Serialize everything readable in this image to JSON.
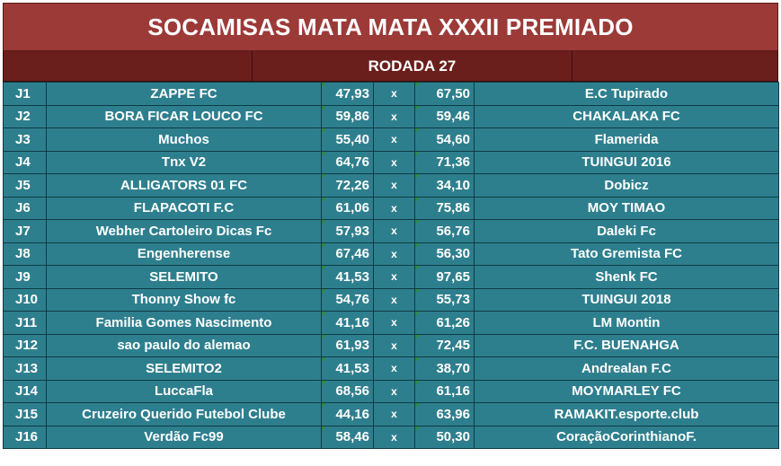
{
  "title": "SOCAMISAS MATA MATA XXXII PREMIADO",
  "round": "RODADA 27",
  "versus": "x",
  "matches": [
    {
      "id": "J1",
      "home": "ZAPPE FC",
      "home_score": "47,93",
      "away_score": "67,50",
      "away": "E.C Tupirado"
    },
    {
      "id": "J2",
      "home": "BORA FICAR LOUCO FC",
      "home_score": "59,86",
      "away_score": "59,46",
      "away": "CHAKALAKA FC"
    },
    {
      "id": "J3",
      "home": "Muchos",
      "home_score": "55,40",
      "away_score": "54,60",
      "away": "Flamerida"
    },
    {
      "id": "J4",
      "home": "Tnx V2",
      "home_score": "64,76",
      "away_score": "71,36",
      "away": "TUINGUI 2016"
    },
    {
      "id": "J5",
      "home": "ALLIGATORS 01 FC",
      "home_score": "72,26",
      "away_score": "34,10",
      "away": "Dobicz"
    },
    {
      "id": "J6",
      "home": "FLAPACOTI F.C",
      "home_score": "61,06",
      "away_score": "75,86",
      "away": "MOY TIMAO"
    },
    {
      "id": "J7",
      "home": "Webher Cartoleiro Dicas Fc",
      "home_score": "57,93",
      "away_score": "56,76",
      "away": "Daleki Fc"
    },
    {
      "id": "J8",
      "home": "Engenherense",
      "home_score": "67,46",
      "away_score": "56,30",
      "away": "Tato Gremista FC"
    },
    {
      "id": "J9",
      "home": "SELEMITO",
      "home_score": "41,53",
      "away_score": "97,65",
      "away": "Shenk FC"
    },
    {
      "id": "J10",
      "home": "Thonny Show fc",
      "home_score": "54,76",
      "away_score": "55,73",
      "away": "TUINGUI 2018"
    },
    {
      "id": "J11",
      "home": "Familia Gomes Nascimento",
      "home_score": "41,16",
      "away_score": "61,26",
      "away": "LM Montin"
    },
    {
      "id": "J12",
      "home": "sao paulo do alemao",
      "home_score": "61,93",
      "away_score": "72,45",
      "away": "F.C. BUENAHGA"
    },
    {
      "id": "J13",
      "home": "SELEMITO2",
      "home_score": "41,53",
      "away_score": "38,70",
      "away": "Andrealan F.C"
    },
    {
      "id": "J14",
      "home": "LuccaFla",
      "home_score": "68,56",
      "away_score": "61,16",
      "away": "MOYMARLEY FC"
    },
    {
      "id": "J15",
      "home": "Cruzeiro Querido Futebol Clube",
      "home_score": "44,16",
      "away_score": "63,96",
      "away": "RAMAKIT.esporte.club"
    },
    {
      "id": "J16",
      "home": "Verdão Fc99",
      "home_score": "58,46",
      "away_score": "50,30",
      "away": "CoraçãoCorinthianoF."
    }
  ],
  "colors": {
    "title_bg": "#9c3a38",
    "round_bg": "#6b1f1d",
    "row_bg": "#2e7f8e",
    "score_marker": "#2e8b3a"
  }
}
